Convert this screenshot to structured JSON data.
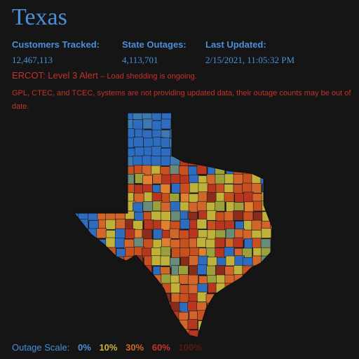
{
  "title": "Texas",
  "stats": {
    "customers_label": "Customers Tracked:",
    "customers_value": "12,467,113",
    "outages_label": "State Outages:",
    "outages_value": "4,113,701",
    "updated_label": "Last Updated:",
    "updated_value": "2/15/2021, 11:05:32 PM"
  },
  "alert": {
    "level": "ERCOT: Level 3 Alert",
    "note": "– Load shedding is ongoing."
  },
  "notice": "GPL, CTEC, and TCEC, systems are not providing updated data, their outage counts may be out of date.",
  "scale": {
    "label": "Outage Scale:",
    "steps": [
      {
        "label": "0%",
        "color": "#4a8fd8"
      },
      {
        "label": "10%",
        "color": "#c9b33b"
      },
      {
        "label": "30%",
        "color": "#d2662a"
      },
      {
        "label": "60%",
        "color": "#c4322a"
      },
      {
        "label": "100%",
        "color": "#5a1814"
      }
    ]
  },
  "colors": {
    "background": "#151515",
    "accent": "#4a8fd8",
    "alert": "#c4322a",
    "map_palette": [
      "#2e6cc0",
      "#3d7ab0",
      "#bfb13a",
      "#9aa03a",
      "#d2662a",
      "#c8501f",
      "#b8361f",
      "#8a2c1c",
      "#6a8a7a",
      "#e08030"
    ]
  }
}
